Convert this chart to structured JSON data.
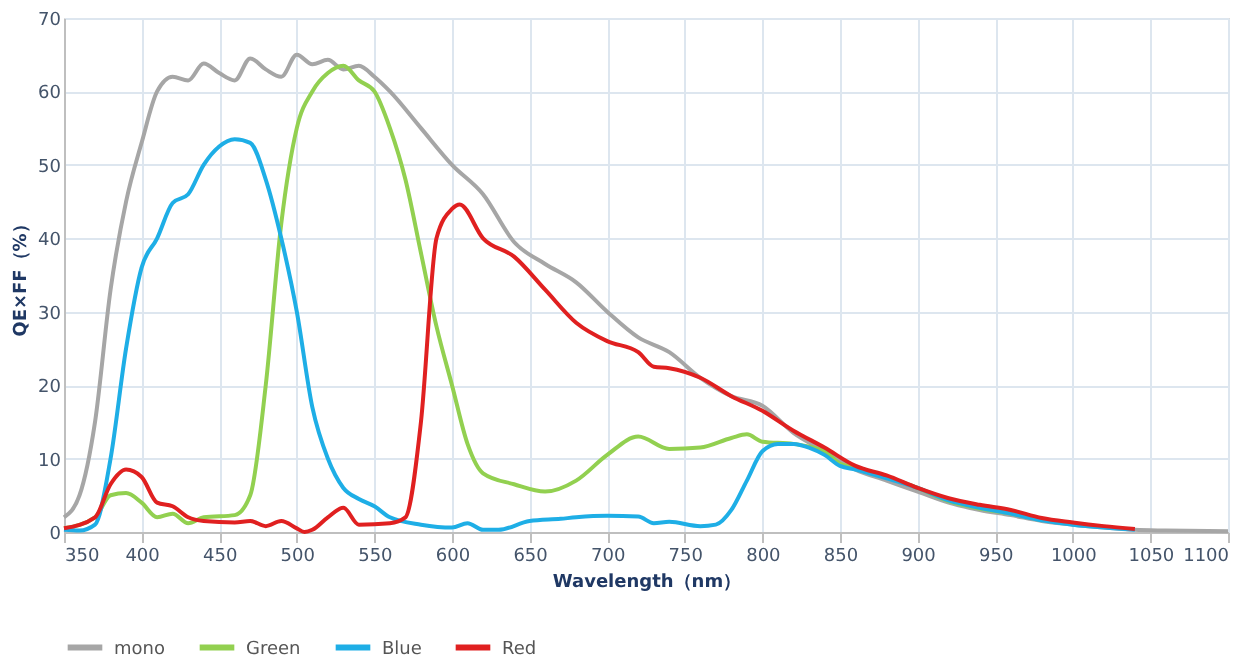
{
  "chart_data": {
    "type": "line",
    "xlabel": "Wavelength（nm）",
    "ylabel": "QE×FF（%）",
    "xlim": [
      350,
      1100
    ],
    "xticks": [
      350,
      400,
      450,
      500,
      550,
      600,
      650,
      700,
      750,
      800,
      850,
      900,
      950,
      1000,
      1050,
      1100
    ],
    "ylim": [
      0,
      70
    ],
    "yticks": [
      0,
      10,
      20,
      30,
      40,
      50,
      60,
      70
    ],
    "grid": true,
    "legend": "bottom",
    "marker": "none",
    "line_style": "solid",
    "series": [
      {
        "name": "mono",
        "color": "#a6a6a6",
        "x": [
          350,
          360,
          370,
          380,
          390,
          400,
          410,
          420,
          430,
          440,
          450,
          460,
          470,
          480,
          490,
          500,
          510,
          520,
          530,
          540,
          550,
          560,
          580,
          600,
          620,
          640,
          660,
          680,
          700,
          720,
          740,
          760,
          780,
          800,
          820,
          840,
          860,
          880,
          900,
          920,
          940,
          960,
          980,
          1000,
          1020,
          1040,
          1060,
          1100
        ],
        "values": [
          2,
          5,
          15,
          33,
          45,
          53,
          60,
          62,
          61.5,
          63.8,
          62.5,
          61.5,
          64.5,
          63,
          62,
          65,
          63.7,
          64.3,
          63,
          63.5,
          62,
          60,
          55,
          50,
          46,
          39.5,
          36.5,
          34,
          30,
          26.5,
          24.5,
          21,
          18.5,
          17.2,
          13.5,
          11,
          8.5,
          7,
          5.5,
          4,
          3,
          2.3,
          1.5,
          1,
          0.6,
          0.3,
          0.2,
          0.1
        ]
      },
      {
        "name": "Green",
        "color": "#92d050",
        "x": [
          350,
          370,
          380,
          390,
          400,
          410,
          420,
          430,
          440,
          460,
          470,
          480,
          490,
          500,
          510,
          520,
          530,
          540,
          550,
          560,
          570,
          580,
          590,
          600,
          610,
          620,
          640,
          660,
          680,
          700,
          720,
          740,
          760,
          780,
          790,
          800,
          820,
          840,
          850,
          860,
          880,
          900,
          920,
          940,
          960,
          980
        ],
        "values": [
          0.5,
          2,
          5,
          5.3,
          4,
          2,
          2.5,
          1.2,
          2,
          2.3,
          5,
          20,
          42,
          55,
          60,
          62.5,
          63.5,
          61.5,
          60,
          55,
          48,
          38,
          28,
          20,
          12,
          8,
          6.5,
          5.5,
          7,
          10.5,
          13,
          11.3,
          11.5,
          12.8,
          13.3,
          12.3,
          12,
          11,
          9.3,
          8.8,
          7.5,
          6,
          4.2,
          3.2,
          2.5,
          1.6
        ]
      },
      {
        "name": "Blue",
        "color": "#1eaee6",
        "x": [
          350,
          360,
          370,
          380,
          390,
          400,
          410,
          420,
          430,
          440,
          450,
          460,
          470,
          480,
          490,
          500,
          510,
          520,
          530,
          540,
          550,
          560,
          580,
          600,
          610,
          620,
          630,
          650,
          670,
          680,
          700,
          720,
          730,
          740,
          760,
          770,
          780,
          790,
          800,
          810,
          820,
          830,
          840,
          850,
          860,
          880,
          900,
          920,
          940,
          960,
          980,
          1000,
          1020,
          1040
        ],
        "values": [
          0.3,
          0.2,
          1,
          10,
          25,
          36,
          40,
          44.8,
          46,
          50,
          52.5,
          53.5,
          53,
          48,
          40,
          30,
          17,
          10,
          6,
          4.5,
          3.5,
          2,
          1,
          0.6,
          1.2,
          0.3,
          0.3,
          1.5,
          1.8,
          2,
          2.2,
          2.1,
          1.2,
          1.4,
          0.8,
          1,
          3,
          7,
          11,
          12,
          12,
          11.5,
          10.5,
          9,
          8.5,
          7.3,
          6,
          4.3,
          3.3,
          2.5,
          1.6,
          1,
          0.6,
          0.3
        ]
      },
      {
        "name": "Red",
        "color": "#e02020",
        "x": [
          350,
          370,
          380,
          390,
          400,
          410,
          420,
          430,
          440,
          460,
          470,
          480,
          490,
          500,
          505,
          510,
          520,
          530,
          540,
          560,
          570,
          580,
          590,
          600,
          605,
          620,
          640,
          660,
          680,
          700,
          720,
          730,
          740,
          760,
          780,
          800,
          820,
          840,
          860,
          880,
          900,
          920,
          940,
          960,
          980,
          1000,
          1020,
          1040
        ],
        "values": [
          0.5,
          2,
          6.5,
          8.5,
          7.5,
          4,
          3.5,
          2,
          1.5,
          1.3,
          1.5,
          0.8,
          1.5,
          0.5,
          0,
          0.3,
          2,
          3.3,
          1,
          1.2,
          2,
          15,
          40,
          44,
          44.6,
          40,
          37.5,
          33,
          28.5,
          26,
          24.5,
          22.5,
          22.3,
          21,
          18.5,
          16.5,
          13.8,
          11.5,
          9,
          7.7,
          6,
          4.6,
          3.7,
          3,
          1.9,
          1.3,
          0.8,
          0.4
        ]
      }
    ]
  }
}
